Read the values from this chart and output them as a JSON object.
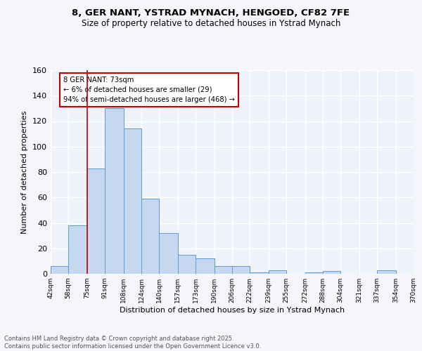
{
  "title_line1": "8, GER NANT, YSTRAD MYNACH, HENGOED, CF82 7FE",
  "title_line2": "Size of property relative to detached houses in Ystrad Mynach",
  "xlabel": "Distribution of detached houses by size in Ystrad Mynach",
  "ylabel": "Number of detached properties",
  "footer_line1": "Contains HM Land Registry data © Crown copyright and database right 2025.",
  "footer_line2": "Contains public sector information licensed under the Open Government Licence v3.0.",
  "bins": [
    42,
    58,
    75,
    91,
    108,
    124,
    140,
    157,
    173,
    190,
    206,
    222,
    239,
    255,
    272,
    288,
    304,
    321,
    337,
    354,
    370
  ],
  "bar_values": [
    6,
    38,
    83,
    130,
    114,
    59,
    32,
    15,
    12,
    6,
    6,
    1,
    3,
    0,
    1,
    2,
    0,
    0,
    3,
    0
  ],
  "bar_color": "#c5d8f0",
  "bar_edge_color": "#5b9bd5",
  "vline_x": 75,
  "vline_color": "#c00000",
  "annotation_text": "8 GER NANT: 73sqm\n← 6% of detached houses are smaller (29)\n94% of semi-detached houses are larger (468) →",
  "annotation_box_color": "#ffffff",
  "annotation_box_edge_color": "#c00000",
  "ylim": [
    0,
    160
  ],
  "yticks": [
    0,
    20,
    40,
    60,
    80,
    100,
    120,
    140,
    160
  ],
  "bg_color": "#eef2fb",
  "grid_color": "#ffffff",
  "fig_bg_color": "#f5f5fa",
  "tick_labels": [
    "42sqm",
    "58sqm",
    "75sqm",
    "91sqm",
    "108sqm",
    "124sqm",
    "140sqm",
    "157sqm",
    "173sqm",
    "190sqm",
    "206sqm",
    "222sqm",
    "239sqm",
    "255sqm",
    "272sqm",
    "288sqm",
    "304sqm",
    "321sqm",
    "337sqm",
    "354sqm",
    "370sqm"
  ]
}
